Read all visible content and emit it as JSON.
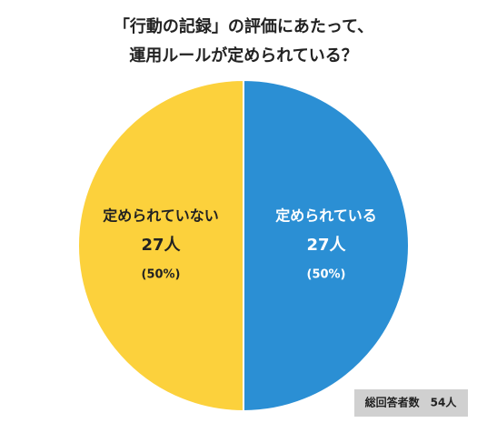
{
  "chart_data": {
    "type": "pie",
    "title": [
      "「行動の記録」の評価にあたって、",
      "運用ルールが定められている？"
    ],
    "categories": [
      "定められている",
      "定められていない"
    ],
    "values": [
      27,
      27
    ],
    "value_labels": [
      "27人",
      "27人"
    ],
    "percents": [
      50,
      50
    ],
    "percent_labels": [
      "(50%)",
      "(50%)"
    ],
    "colors": [
      "#2b8fd4",
      "#fcd13c"
    ],
    "label_colors": [
      "#ffffff",
      "#222222"
    ],
    "note": "総回答者数　54人"
  }
}
